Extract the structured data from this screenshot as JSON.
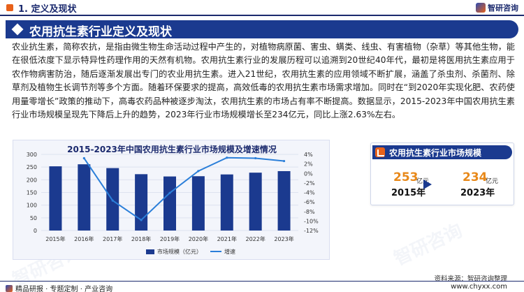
{
  "header": {
    "section_label": "1. 定义及现状",
    "logo_text": "智研咨询"
  },
  "banner": {
    "title": "农用抗生素行业定义及现状"
  },
  "paragraph": "农业抗生素，简称农抗，是指由微生物生命活动过程中产生的，对植物病原菌、害虫、螨类、线虫、有害植物（杂草）等其他生物，能在很低浓度下显示特异性药理作用的天然有机物。农用抗生素行业的发展历程可以追溯到20世纪40年代，最初是将医用抗生素应用于农作物病害防治，随后逐渐发展出专门的农业用抗生素。进入21世纪，农用抗生素的应用领域不断扩展，涵盖了杀虫剂、杀菌剂、除草剂及植物生长调节剂等多个方面。随着环保要求的提高，高效低毒的农用抗生素市场需求增加。同时在“到2020年实现化肥、农药使用量零增长”政策的推动下，高毒农药品种被逐步淘汰，农用抗生素的市场占有率不断提高。数据显示，2015-2023年中国农用抗生素行业市场规模呈现先下降后上升的趋势，2023年行业市场规模增长至234亿元，同比上涨2.63%左右。",
  "chart_data": {
    "type": "bar",
    "title": "2015-2023年中国农用抗生素行业市场规模及增速情况",
    "categories": [
      "2015年",
      "2016年",
      "2017年",
      "2018年",
      "2019年",
      "2020年",
      "2021年",
      "2022年",
      "2023年"
    ],
    "series": [
      {
        "name": "市场规模（亿元）",
        "type": "bar",
        "axis": "left",
        "color": "#1b3a8f",
        "values": [
          253,
          261,
          246,
          222,
          213,
          214,
          221,
          228,
          234
        ]
      },
      {
        "name": "增速",
        "type": "line",
        "axis": "right",
        "color": "#2b7fd9",
        "values": [
          null,
          3.2,
          -5.7,
          -9.8,
          -4.1,
          0.5,
          3.3,
          3.2,
          2.6
        ]
      }
    ],
    "y_left": {
      "min": 0,
      "max": 300,
      "ticks": [
        "0",
        "50",
        "100",
        "150",
        "200",
        "250",
        "300"
      ]
    },
    "y_right": {
      "min": -12,
      "max": 4,
      "ticks": [
        "-12%",
        "-10%",
        "-8%",
        "-6%",
        "-4%",
        "-2%",
        "0%",
        "2%",
        "4%"
      ]
    },
    "legend_position": "bottom",
    "grid": true
  },
  "side_card": {
    "title": "农用抗生素行业市场规模",
    "start_value": "253",
    "start_unit": "亿元",
    "start_year": "2015年",
    "end_value": "234",
    "end_unit": "亿元",
    "end_year": "2023年"
  },
  "source": "资料来源：智研咨询整理",
  "footer": {
    "left_text": "精品研报 · 专题定制 · 产业咨询",
    "right_text": "www.chyxx.com"
  },
  "watermark_text": "智研咨询"
}
